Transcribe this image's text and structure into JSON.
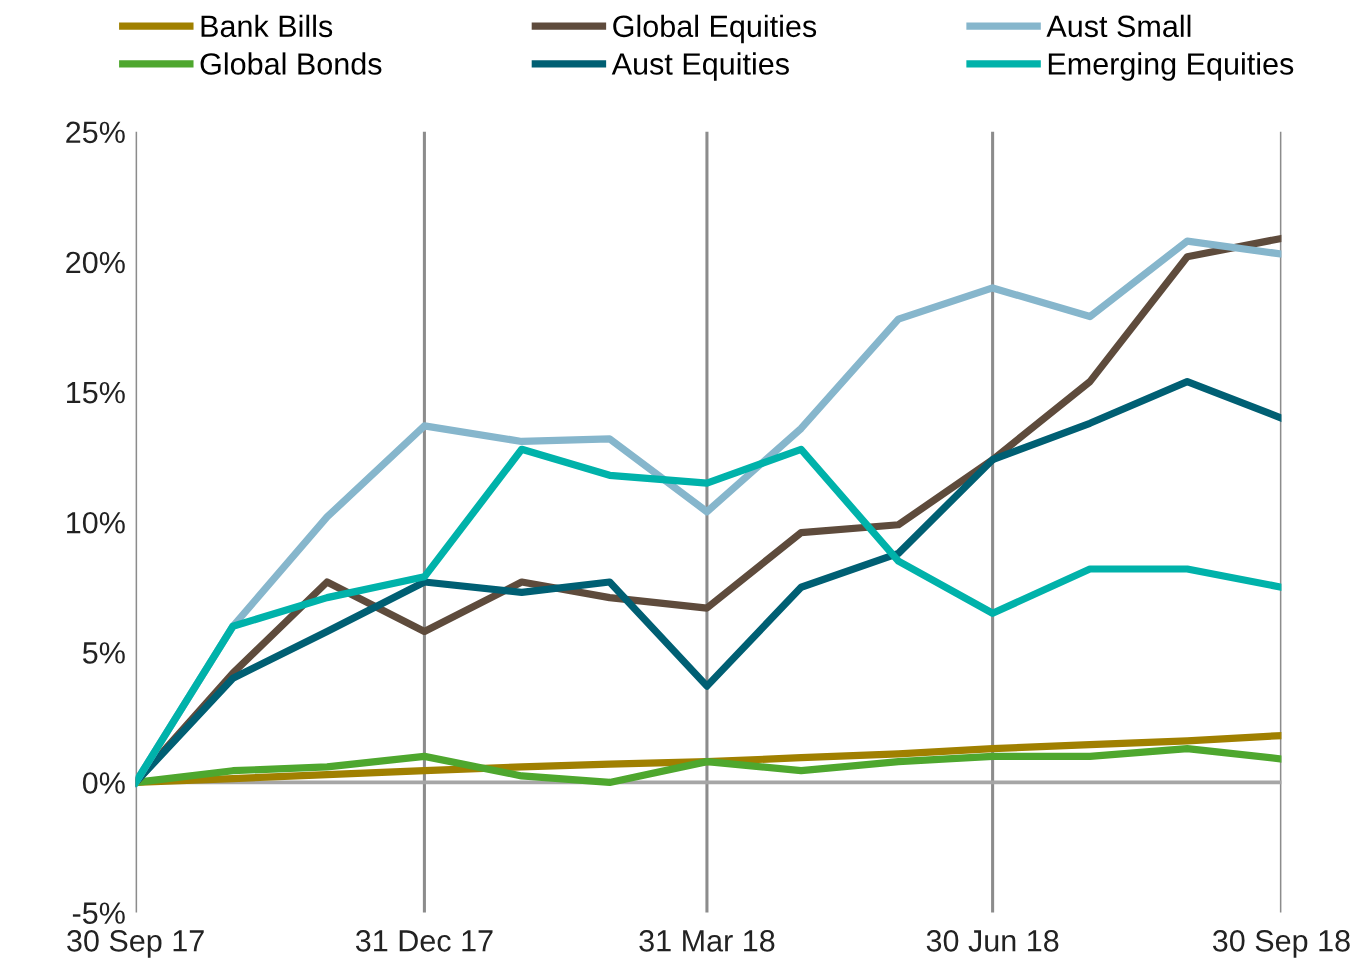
{
  "chart_data": {
    "type": "line",
    "x": [
      "2017-09-30",
      "2017-10-31",
      "2017-11-30",
      "2017-12-31",
      "2018-01-31",
      "2018-02-28",
      "2018-03-31",
      "2018-04-30",
      "2018-05-31",
      "2018-06-30",
      "2018-07-31",
      "2018-08-31",
      "2018-09-30"
    ],
    "series": [
      {
        "name": "Bank Bills",
        "color": "#a08000",
        "values": [
          0,
          0.15,
          0.3,
          0.45,
          0.6,
          0.7,
          0.8,
          0.95,
          1.1,
          1.3,
          1.45,
          1.6,
          1.8
        ]
      },
      {
        "name": "Global Bonds",
        "color": "#4ea72e",
        "values": [
          0,
          0.45,
          0.6,
          1.0,
          0.25,
          0,
          0.8,
          0.45,
          0.8,
          1.0,
          1.0,
          1.3,
          0.9
        ]
      },
      {
        "name": "Global Equities",
        "color": "#5e4b3c",
        "values": [
          0,
          4.2,
          7.7,
          5.8,
          7.7,
          7.1,
          6.7,
          9.6,
          9.9,
          12.4,
          15.4,
          20.2,
          20.9
        ]
      },
      {
        "name": "Aust Equities",
        "color": "#005f73",
        "values": [
          0,
          4.0,
          5.8,
          7.7,
          7.3,
          7.7,
          3.7,
          7.5,
          8.8,
          12.4,
          13.8,
          15.4,
          14.0
        ]
      },
      {
        "name": "Aust Small",
        "color": "#86b6cc",
        "values": [
          0,
          6.0,
          10.2,
          13.7,
          13.1,
          13.2,
          10.4,
          13.6,
          17.8,
          19.0,
          17.9,
          20.8,
          20.3
        ]
      },
      {
        "name": "Emerging Equities",
        "color": "#00b2aa",
        "values": [
          0,
          6.0,
          7.1,
          7.9,
          12.8,
          11.8,
          11.5,
          12.8,
          8.5,
          6.5,
          8.2,
          8.2,
          7.5
        ]
      }
    ],
    "xlim": [
      "2017-09-30",
      "2018-09-30"
    ],
    "xticks": [
      {
        "value": "2017-09-30",
        "label": "30 Sep 17"
      },
      {
        "value": "2017-12-31",
        "label": "31 Dec 17"
      },
      {
        "value": "2018-03-31",
        "label": "31 Mar 18"
      },
      {
        "value": "2018-06-30",
        "label": "30 Jun 18"
      },
      {
        "value": "2018-09-30",
        "label": "30 Sep 18"
      }
    ],
    "ylim": [
      -5,
      25
    ],
    "yticks": [
      {
        "value": -5,
        "label": "-5%"
      },
      {
        "value": 0,
        "label": "0%"
      },
      {
        "value": 5,
        "label": "5%"
      },
      {
        "value": 10,
        "label": "10%"
      },
      {
        "value": 15,
        "label": "15%"
      },
      {
        "value": 20,
        "label": "20%"
      },
      {
        "value": 25,
        "label": "25%"
      }
    ],
    "ref_lines": [
      {
        "axis": "y",
        "value": 0,
        "color": "#a6a6a6"
      }
    ],
    "grid": "x",
    "legend": "top",
    "line_style": "solid",
    "marker": "none"
  }
}
